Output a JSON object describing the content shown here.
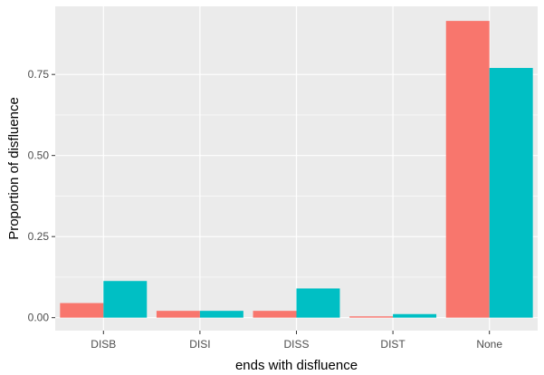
{
  "chart_data": {
    "type": "bar",
    "xlabel": "ends with disfluence",
    "ylabel": "Proportion of disfluence",
    "categories": [
      "DISB",
      "DISI",
      "DISS",
      "DIST",
      "None"
    ],
    "series": [
      {
        "color": "#F8766D",
        "values": [
          0.045,
          0.021,
          0.021,
          0.004,
          0.915
        ]
      },
      {
        "color": "#00BFC4",
        "values": [
          0.113,
          0.021,
          0.09,
          0.011,
          0.77
        ]
      }
    ],
    "ylim": [
      -0.04,
      0.96
    ],
    "yticks": [
      0.0,
      0.25,
      0.5,
      0.75
    ],
    "ytick_labels": [
      "0.00",
      "0.25",
      "0.50",
      "0.75"
    ],
    "grid": true,
    "legend": "none",
    "panel_background": "#EBEBEB",
    "gridline_color": "#FFFFFF"
  }
}
